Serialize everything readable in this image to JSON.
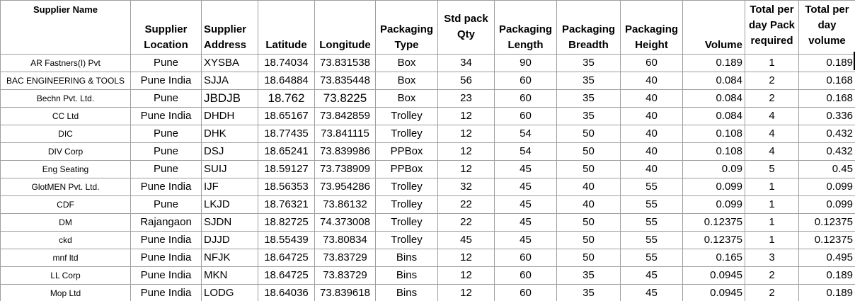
{
  "headers": {
    "supplier_name": "Supplier Name",
    "supplier_location": "Supplier Location",
    "supplier_address": "Supplier Address",
    "latitude": "Latitude",
    "longitude": "Longitude",
    "packaging_type": "Packaging Type",
    "std_pack_qty": "Std pack Qty",
    "packaging_length": "Packaging Length",
    "packaging_breadth": "Packaging Breadth",
    "packaging_height": "Packaging Height",
    "volume": "Volume",
    "total_per_day_pack_required": "Total per day Pack required",
    "total_per_day_volume": "Total per day volume"
  },
  "rows": [
    [
      "AR Fastners(I) Pvt",
      "Pune",
      "XYSBA",
      "18.74034",
      "73.831538",
      "Box",
      "34",
      "90",
      "35",
      "60",
      "0.189",
      "1",
      "0.189"
    ],
    [
      "BAC ENGINEERING & TOOLS",
      "Pune India",
      "SJJA",
      "18.64884",
      "73.835448",
      "Box",
      "56",
      "60",
      "35",
      "40",
      "0.084",
      "2",
      "0.168"
    ],
    [
      "Bechn  Pvt. Ltd.",
      "Pune",
      "JBDJB",
      "18.762",
      "73.8225",
      "Box",
      "23",
      "60",
      "35",
      "40",
      "0.084",
      "2",
      "0.168"
    ],
    [
      "CC  Ltd",
      "Pune India",
      "DHDH",
      "18.65167",
      "73.842859",
      "Trolley",
      "12",
      "60",
      "35",
      "40",
      "0.084",
      "4",
      "0.336"
    ],
    [
      "DIC",
      "Pune",
      "DHK",
      "18.77435",
      "73.841115",
      "Trolley",
      "12",
      "54",
      "50",
      "40",
      "0.108",
      "4",
      "0.432"
    ],
    [
      "DIV Corp",
      "Pune",
      "DSJ",
      "18.65241",
      "73.839986",
      "PPBox",
      "12",
      "54",
      "50",
      "40",
      "0.108",
      "4",
      "0.432"
    ],
    [
      "Eng Seating",
      "Pune",
      "SUIJ",
      "18.59127",
      "73.738909",
      "PPBox",
      "12",
      "45",
      "50",
      "40",
      "0.09",
      "5",
      "0.45"
    ],
    [
      "GlotMEN Pvt. Ltd.",
      "Pune India",
      "IJF",
      "18.56353",
      "73.954286",
      "Trolley",
      "32",
      "45",
      "40",
      "55",
      "0.099",
      "1",
      "0.099"
    ],
    [
      "CDF",
      "Pune",
      "LKJD",
      "18.76321",
      "73.86132",
      "Trolley",
      "22",
      "45",
      "40",
      "55",
      "0.099",
      "1",
      "0.099"
    ],
    [
      "DM",
      "Rajangaon",
      "SJDN",
      "18.82725",
      "74.373008",
      "Trolley",
      "22",
      "45",
      "50",
      "55",
      "0.12375",
      "1",
      "0.12375"
    ],
    [
      "ckd",
      "Pune India",
      "DJJD",
      "18.55439",
      "73.80834",
      "Trolley",
      "45",
      "45",
      "50",
      "55",
      "0.12375",
      "1",
      "0.12375"
    ],
    [
      "mnf ltd",
      "Pune India",
      "NFJK",
      "18.64725",
      "73.83729",
      "Bins",
      "12",
      "60",
      "50",
      "55",
      "0.165",
      "3",
      "0.495"
    ],
    [
      "LL Corp",
      "Pune India",
      "MKN",
      "18.64725",
      "73.83729",
      "Bins",
      "12",
      "60",
      "35",
      "45",
      "0.0945",
      "2",
      "0.189"
    ],
    [
      "Mop Ltd",
      "Pune India",
      "LODG",
      "18.64036",
      "73.839618",
      "Bins",
      "12",
      "60",
      "35",
      "45",
      "0.0945",
      "2",
      "0.189"
    ]
  ]
}
